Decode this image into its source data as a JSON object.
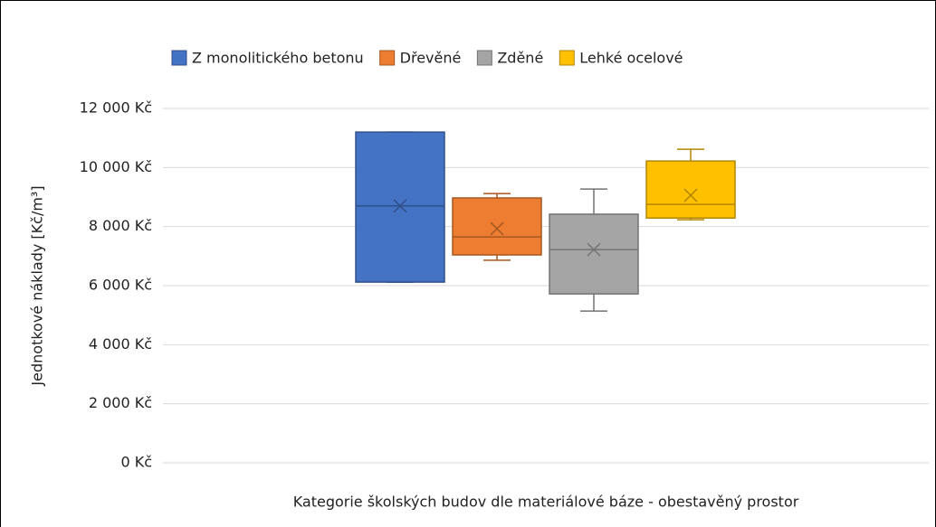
{
  "chart_data": {
    "type": "box",
    "x_label": "Kategorie  školských budov dle materiálové báze - obestavěný prostor",
    "y_label": "Jednotkové náklady [Kč/m³]",
    "ylim": [
      0,
      12000
    ],
    "yticks": [
      {
        "value": 0,
        "label": "0 Kč"
      },
      {
        "value": 2000,
        "label": "2 000 Kč"
      },
      {
        "value": 4000,
        "label": "4 000 Kč"
      },
      {
        "value": 6000,
        "label": "6 000 Kč"
      },
      {
        "value": 8000,
        "label": "8 000 Kč"
      },
      {
        "value": 10000,
        "label": "10 000 Kč"
      },
      {
        "value": 12000,
        "label": "12 000 Kč"
      }
    ],
    "grid": true,
    "legend": "top",
    "series": [
      {
        "name": "Z monolitického betonu",
        "color": "#4472c4",
        "min": 6120,
        "q1": 6120,
        "median": 8700,
        "q3": 11200,
        "max": 11200,
        "mean": 8700
      },
      {
        "name": "Dřevěné",
        "color": "#ed7d31",
        "min": 6860,
        "q1": 7040,
        "median": 7650,
        "q3": 8970,
        "max": 9120,
        "mean": 7930
      },
      {
        "name": "Zděné",
        "color": "#a5a5a5",
        "min": 5140,
        "q1": 5720,
        "median": 7220,
        "q3": 8420,
        "max": 9270,
        "mean": 7220
      },
      {
        "name": "Lehké ocelové",
        "color": "#ffc000",
        "min": 8230,
        "q1": 8290,
        "median": 8750,
        "q3": 10220,
        "max": 10620,
        "mean": 9060
      }
    ]
  }
}
